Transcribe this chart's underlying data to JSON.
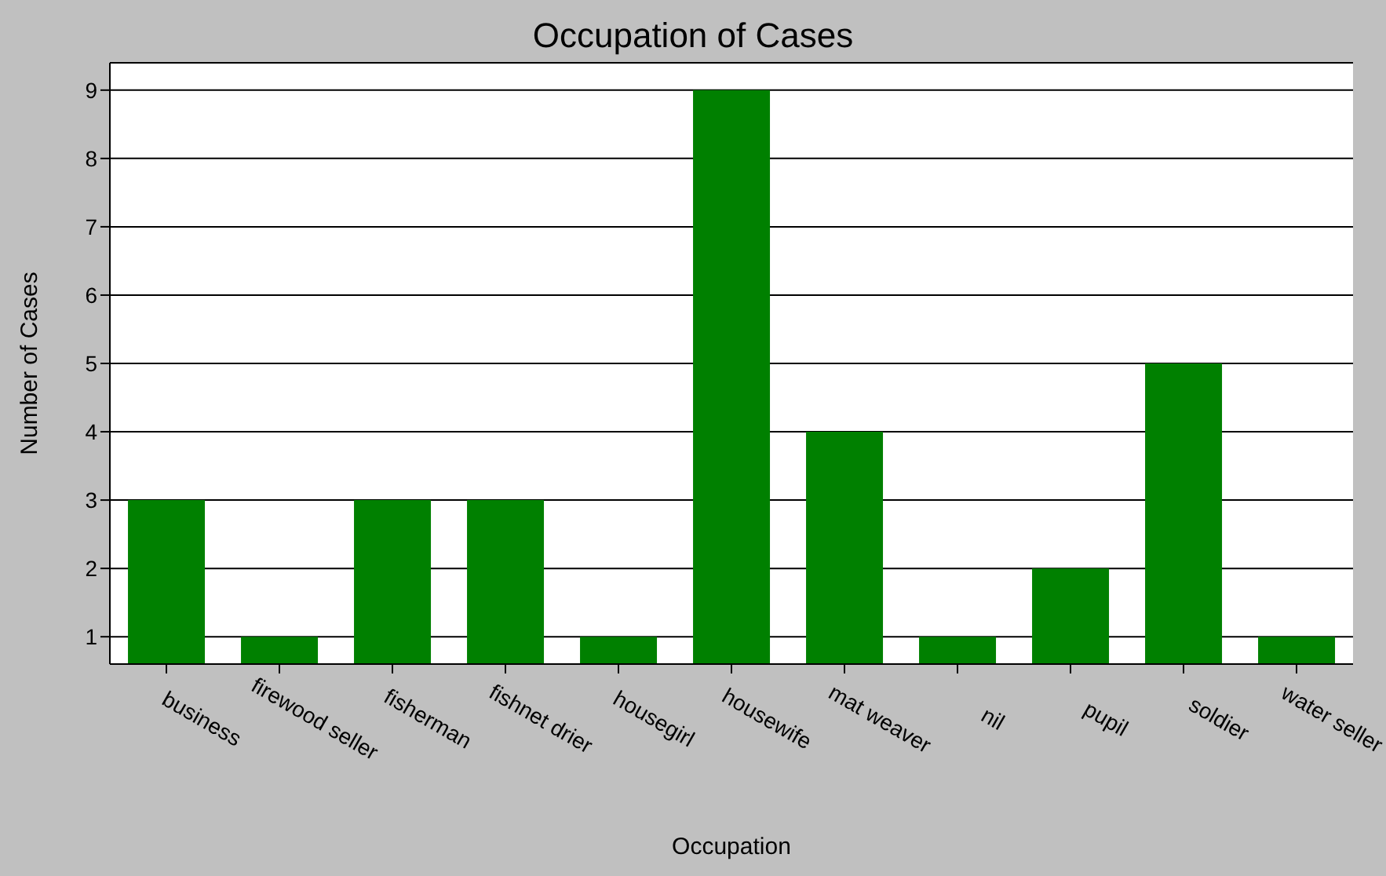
{
  "chart_data": {
    "type": "bar",
    "title": "Occupation of Cases",
    "xlabel": "Occupation",
    "ylabel": "Number of Cases",
    "categories": [
      "business",
      "firewood seller",
      "fisherman",
      "fishnet drier",
      "housegirl",
      "housewife",
      "mat weaver",
      "nil",
      "pupil",
      "soldier",
      "water seller"
    ],
    "values": [
      3,
      1,
      3,
      3,
      1,
      9,
      4,
      1,
      2,
      5,
      1
    ],
    "color": "#008000",
    "ylim": [
      0.6,
      9.4
    ],
    "yticks": [
      1,
      2,
      3,
      4,
      5,
      6,
      7,
      8,
      9
    ],
    "grid": "y",
    "legend": false
  }
}
